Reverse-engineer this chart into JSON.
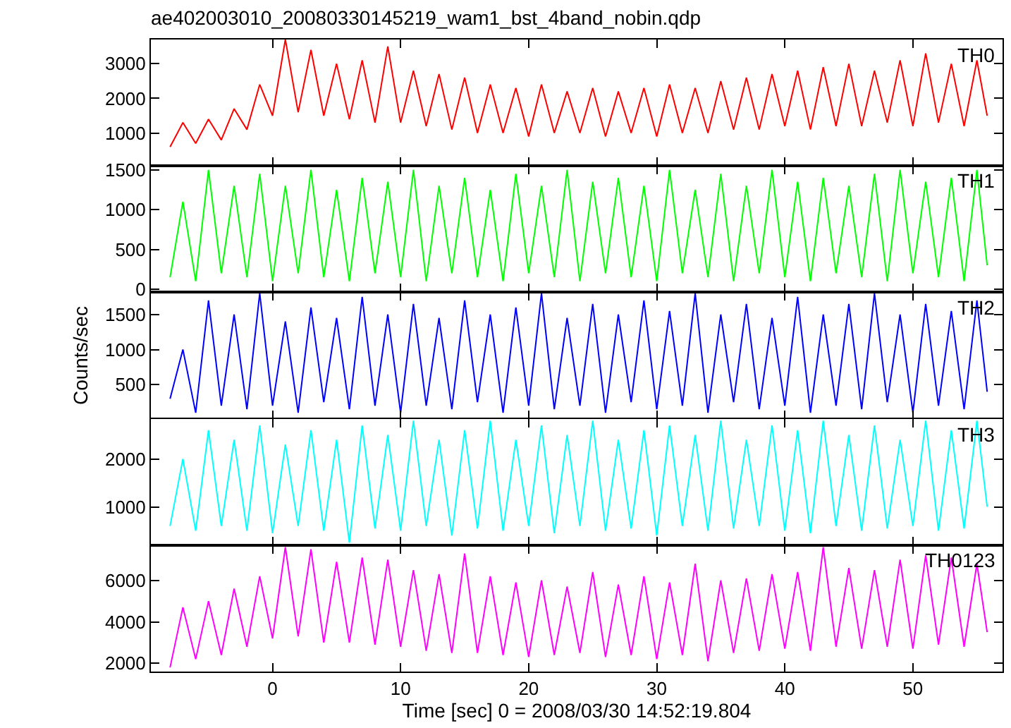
{
  "chart_data": [
    {
      "type": "line",
      "title": "ae402003010_20080330145219_wam1_bst_4band_nobin.qdp",
      "annotations": [
        "TH0"
      ],
      "tick_labels": "y",
      "x": [
        -8,
        -7,
        -6,
        -5,
        -4,
        -3,
        -2,
        -1,
        0,
        1,
        2,
        3,
        4,
        5,
        6,
        7,
        8,
        9,
        10,
        11,
        12,
        13,
        14,
        15,
        16,
        17,
        18,
        19,
        20,
        21,
        22,
        23,
        24,
        25,
        26,
        27,
        28,
        29,
        30,
        31,
        32,
        33,
        34,
        35,
        36,
        37,
        38,
        39,
        40,
        41,
        42,
        43,
        44,
        45,
        46,
        47,
        48,
        49,
        50,
        51,
        52,
        53,
        54,
        55,
        55.8
      ],
      "series": [
        {
          "color": "#ff0000",
          "values": [
            600,
            1300,
            700,
            1400,
            800,
            1700,
            1100,
            2400,
            1500,
            3700,
            1600,
            3400,
            1500,
            3000,
            1400,
            3100,
            1300,
            3500,
            1300,
            2800,
            1200,
            2700,
            1100,
            2600,
            1000,
            2400,
            1000,
            2300,
            900,
            2400,
            1000,
            2200,
            1000,
            2300,
            900,
            2200,
            1000,
            2300,
            900,
            2400,
            1000,
            2300,
            1000,
            2500,
            1100,
            2600,
            1100,
            2700,
            1200,
            2800,
            1100,
            2900,
            1200,
            3000,
            1200,
            2800,
            1300,
            3100,
            1200,
            3300,
            1300,
            3000,
            1200,
            3100,
            1500
          ]
        }
      ],
      "xlim": [
        -9.5,
        57
      ],
      "xticks": [
        0,
        10,
        20,
        30,
        40,
        50
      ],
      "ylim": [
        50,
        3700
      ],
      "yticks": [
        1000,
        2000,
        3000
      ]
    },
    {
      "type": "line",
      "annotations": [
        "TH1"
      ],
      "tick_labels": "y",
      "x": [
        -8,
        -7,
        -6,
        -5,
        -4,
        -3,
        -2,
        -1,
        0,
        1,
        2,
        3,
        4,
        5,
        6,
        7,
        8,
        9,
        10,
        11,
        12,
        13,
        14,
        15,
        16,
        17,
        18,
        19,
        20,
        21,
        22,
        23,
        24,
        25,
        26,
        27,
        28,
        29,
        30,
        31,
        32,
        33,
        34,
        35,
        36,
        37,
        38,
        39,
        40,
        41,
        42,
        43,
        44,
        45,
        46,
        47,
        48,
        49,
        50,
        51,
        52,
        53,
        54,
        55,
        55.8
      ],
      "series": [
        {
          "color": "#00ff00",
          "values": [
            150,
            1100,
            100,
            1500,
            200,
            1300,
            150,
            1450,
            100,
            1300,
            200,
            1500,
            150,
            1250,
            100,
            1400,
            200,
            1350,
            150,
            1500,
            100,
            1300,
            200,
            1400,
            150,
            1250,
            100,
            1450,
            200,
            1300,
            150,
            1500,
            100,
            1350,
            200,
            1400,
            150,
            1300,
            100,
            1500,
            200,
            1250,
            150,
            1450,
            100,
            1300,
            200,
            1500,
            150,
            1350,
            100,
            1400,
            200,
            1300,
            150,
            1450,
            100,
            1500,
            200,
            1350,
            150,
            1400,
            100,
            1500,
            300
          ]
        }
      ],
      "xlim": [
        -9.5,
        57
      ],
      "xticks": [
        0,
        10,
        20,
        30,
        40,
        50
      ],
      "ylim": [
        -40,
        1550
      ],
      "yticks": [
        0,
        500,
        1000,
        1500
      ]
    },
    {
      "type": "line",
      "ylabel": "Counts/sec",
      "annotations": [
        "TH2"
      ],
      "tick_labels": "y",
      "x": [
        -8,
        -7,
        -6,
        -5,
        -4,
        -3,
        -2,
        -1,
        0,
        1,
        2,
        3,
        4,
        5,
        6,
        7,
        8,
        9,
        10,
        11,
        12,
        13,
        14,
        15,
        16,
        17,
        18,
        19,
        20,
        21,
        22,
        23,
        24,
        25,
        26,
        27,
        28,
        29,
        30,
        31,
        32,
        33,
        34,
        35,
        36,
        37,
        38,
        39,
        40,
        41,
        42,
        43,
        44,
        45,
        46,
        47,
        48,
        49,
        50,
        51,
        52,
        53,
        54,
        55,
        55.8
      ],
      "series": [
        {
          "color": "#0000ff",
          "values": [
            300,
            1000,
            100,
            1700,
            200,
            1500,
            150,
            1800,
            200,
            1400,
            100,
            1600,
            250,
            1450,
            150,
            1750,
            200,
            1500,
            100,
            1650,
            200,
            1450,
            150,
            1700,
            250,
            1500,
            100,
            1600,
            200,
            1800,
            150,
            1450,
            200,
            1650,
            100,
            1500,
            250,
            1700,
            150,
            1550,
            200,
            1800,
            100,
            1500,
            250,
            1650,
            150,
            1450,
            200,
            1750,
            100,
            1500,
            200,
            1650,
            150,
            1800,
            250,
            1500,
            100,
            1650,
            200,
            1550,
            150,
            1700,
            400
          ]
        }
      ],
      "xlim": [
        -9.5,
        57
      ],
      "xticks": [
        0,
        10,
        20,
        30,
        40,
        50
      ],
      "ylim": [
        15,
        1815
      ],
      "yticks": [
        500,
        1000,
        1500
      ]
    },
    {
      "type": "line",
      "annotations": [
        "TH3"
      ],
      "tick_labels": "y",
      "x": [
        -8,
        -7,
        -6,
        -5,
        -4,
        -3,
        -2,
        -1,
        0,
        1,
        2,
        3,
        4,
        5,
        6,
        7,
        8,
        9,
        10,
        11,
        12,
        13,
        14,
        15,
        16,
        17,
        18,
        19,
        20,
        21,
        22,
        23,
        24,
        25,
        26,
        27,
        28,
        29,
        30,
        31,
        32,
        33,
        34,
        35,
        36,
        37,
        38,
        39,
        40,
        41,
        42,
        43,
        44,
        45,
        46,
        47,
        48,
        49,
        50,
        51,
        52,
        53,
        54,
        55,
        55.8
      ],
      "series": [
        {
          "color": "#00ffff",
          "values": [
            600,
            2000,
            500,
            2600,
            600,
            2400,
            500,
            2700,
            450,
            2300,
            600,
            2600,
            500,
            2400,
            250,
            2700,
            550,
            2500,
            500,
            2800,
            600,
            2400,
            400,
            2600,
            550,
            2800,
            500,
            2400,
            600,
            2700,
            450,
            2500,
            600,
            2800,
            500,
            2400,
            550,
            2600,
            400,
            2700,
            600,
            2500,
            500,
            2800,
            550,
            2400,
            600,
            2700,
            500,
            2600,
            450,
            2800,
            600,
            2500,
            500,
            2700,
            550,
            2400,
            600,
            2800,
            500,
            2600,
            550,
            2800,
            1000
          ]
        }
      ],
      "xlim": [
        -9.5,
        57
      ],
      "xticks": [
        0,
        10,
        20,
        30,
        40,
        50
      ],
      "ylim": [
        200,
        2840
      ],
      "yticks": [
        1000,
        2000
      ]
    },
    {
      "type": "line",
      "xlabel": "Time [sec] 0 = 2008/03/30 14:52:19.804",
      "annotations": [
        "TH0123"
      ],
      "x": [
        -8,
        -7,
        -6,
        -5,
        -4,
        -3,
        -2,
        -1,
        0,
        1,
        2,
        3,
        4,
        5,
        6,
        7,
        8,
        9,
        10,
        11,
        12,
        13,
        14,
        15,
        16,
        17,
        18,
        19,
        20,
        21,
        22,
        23,
        24,
        25,
        26,
        27,
        28,
        29,
        30,
        31,
        32,
        33,
        34,
        35,
        36,
        37,
        38,
        39,
        40,
        41,
        42,
        43,
        44,
        45,
        46,
        47,
        48,
        49,
        50,
        51,
        52,
        53,
        54,
        55,
        55.8
      ],
      "series": [
        {
          "color": "#ff00ff",
          "values": [
            1800,
            4700,
            2200,
            5000,
            2400,
            5600,
            2800,
            6200,
            3200,
            7600,
            3300,
            7500,
            3000,
            6900,
            3000,
            7100,
            2900,
            7000,
            2800,
            6500,
            2600,
            6300,
            2500,
            7300,
            2500,
            6200,
            2400,
            5900,
            2300,
            6000,
            2400,
            5700,
            2500,
            6400,
            2300,
            5800,
            2400,
            6200,
            2200,
            5900,
            2400,
            6800,
            2100,
            6000,
            2500,
            6100,
            2600,
            6300,
            2700,
            6400,
            2600,
            7600,
            2800,
            6600,
            2700,
            6500,
            2800,
            7000,
            2700,
            7200,
            2900,
            7100,
            2800,
            6800,
            3500
          ]
        }
      ],
      "xlim": [
        -9.5,
        57
      ],
      "xticks": [
        0,
        10,
        20,
        30,
        40,
        50
      ],
      "ylim": [
        1600,
        7700
      ],
      "yticks": [
        2000,
        4000,
        6000
      ]
    }
  ]
}
